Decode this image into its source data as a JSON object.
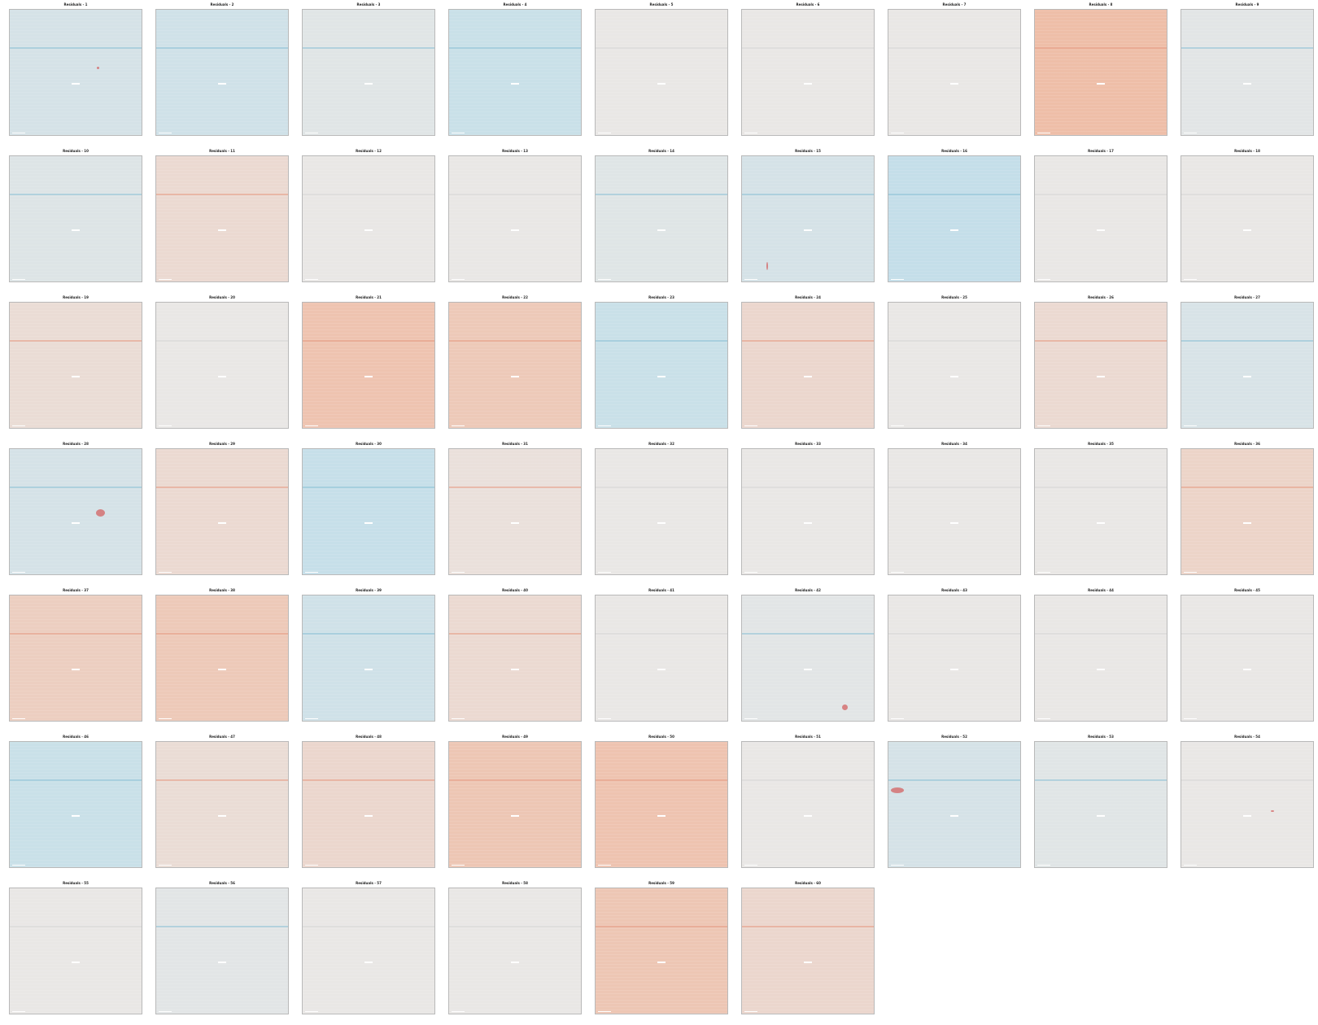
{
  "figure": {
    "panels": [
      {
        "title": "Residuals - 1",
        "tone": "cool",
        "strength": 0.35
      },
      {
        "title": "Residuals - 2",
        "tone": "cool",
        "strength": 0.45
      },
      {
        "title": "Residuals - 3",
        "tone": "cool",
        "strength": 0.15
      },
      {
        "title": "Residuals - 4",
        "tone": "cool",
        "strength": 0.55
      },
      {
        "title": "Residuals - 5",
        "tone": "neutral",
        "strength": 0.0
      },
      {
        "title": "Residuals - 6",
        "tone": "neutral",
        "strength": 0.0
      },
      {
        "title": "Residuals - 7",
        "tone": "neutral",
        "strength": 0.0
      },
      {
        "title": "Residuals - 8",
        "tone": "warm",
        "strength": 0.75
      },
      {
        "title": "Residuals - 9",
        "tone": "cool",
        "strength": 0.12
      },
      {
        "title": "Residuals - 10",
        "tone": "cool",
        "strength": 0.2
      },
      {
        "title": "Residuals - 11",
        "tone": "warm",
        "strength": 0.25
      },
      {
        "title": "Residuals - 12",
        "tone": "neutral",
        "strength": 0.0
      },
      {
        "title": "Residuals - 13",
        "tone": "neutral",
        "strength": 0.0
      },
      {
        "title": "Residuals - 14",
        "tone": "cool",
        "strength": 0.18
      },
      {
        "title": "Residuals - 15",
        "tone": "cool",
        "strength": 0.35
      },
      {
        "title": "Residuals - 16",
        "tone": "cool",
        "strength": 0.65
      },
      {
        "title": "Residuals - 17",
        "tone": "neutral",
        "strength": 0.0
      },
      {
        "title": "Residuals - 18",
        "tone": "neutral",
        "strength": 0.05
      },
      {
        "title": "Residuals - 19",
        "tone": "warm",
        "strength": 0.2
      },
      {
        "title": "Residuals - 20",
        "tone": "neutral",
        "strength": 0.0
      },
      {
        "title": "Residuals - 21",
        "tone": "warm",
        "strength": 0.65
      },
      {
        "title": "Residuals - 22",
        "tone": "warm",
        "strength": 0.55
      },
      {
        "title": "Residuals - 23",
        "tone": "cool",
        "strength": 0.55
      },
      {
        "title": "Residuals - 24",
        "tone": "warm",
        "strength": 0.3
      },
      {
        "title": "Residuals - 25",
        "tone": "neutral",
        "strength": 0.0
      },
      {
        "title": "Residuals - 26",
        "tone": "warm",
        "strength": 0.25
      },
      {
        "title": "Residuals - 27",
        "tone": "cool",
        "strength": 0.3
      },
      {
        "title": "Residuals - 28",
        "tone": "cool",
        "strength": 0.35
      },
      {
        "title": "Residuals - 29",
        "tone": "warm",
        "strength": 0.25
      },
      {
        "title": "Residuals - 30",
        "tone": "cool",
        "strength": 0.6
      },
      {
        "title": "Residuals - 31",
        "tone": "warm",
        "strength": 0.12
      },
      {
        "title": "Residuals - 32",
        "tone": "neutral",
        "strength": 0.0
      },
      {
        "title": "Residuals - 33",
        "tone": "neutral",
        "strength": 0.0
      },
      {
        "title": "Residuals - 34",
        "tone": "neutral",
        "strength": 0.0
      },
      {
        "title": "Residuals - 35",
        "tone": "neutral",
        "strength": 0.0
      },
      {
        "title": "Residuals - 36",
        "tone": "warm",
        "strength": 0.35
      },
      {
        "title": "Residuals - 37",
        "tone": "warm",
        "strength": 0.45
      },
      {
        "title": "Residuals - 38",
        "tone": "warm",
        "strength": 0.55
      },
      {
        "title": "Residuals - 39",
        "tone": "cool",
        "strength": 0.45
      },
      {
        "title": "Residuals - 40",
        "tone": "warm",
        "strength": 0.25
      },
      {
        "title": "Residuals - 41",
        "tone": "neutral",
        "strength": 0.0
      },
      {
        "title": "Residuals - 42",
        "tone": "cool",
        "strength": 0.12
      },
      {
        "title": "Residuals - 43",
        "tone": "neutral",
        "strength": 0.0
      },
      {
        "title": "Residuals - 44",
        "tone": "neutral",
        "strength": 0.0
      },
      {
        "title": "Residuals - 45",
        "tone": "neutral",
        "strength": 0.0
      },
      {
        "title": "Residuals - 46",
        "tone": "cool",
        "strength": 0.55
      },
      {
        "title": "Residuals - 47",
        "tone": "warm",
        "strength": 0.2
      },
      {
        "title": "Residuals - 48",
        "tone": "warm",
        "strength": 0.3
      },
      {
        "title": "Residuals - 49",
        "tone": "warm",
        "strength": 0.6
      },
      {
        "title": "Residuals - 50",
        "tone": "warm",
        "strength": 0.65
      },
      {
        "title": "Residuals - 51",
        "tone": "neutral",
        "strength": 0.0
      },
      {
        "title": "Residuals - 52",
        "tone": "cool",
        "strength": 0.35
      },
      {
        "title": "Residuals - 53",
        "tone": "cool",
        "strength": 0.15
      },
      {
        "title": "Residuals - 54",
        "tone": "neutral",
        "strength": 0.0
      },
      {
        "title": "Residuals - 55",
        "tone": "neutral",
        "strength": 0.0
      },
      {
        "title": "Residuals - 56",
        "tone": "cool",
        "strength": 0.12
      },
      {
        "title": "Residuals - 57",
        "tone": "neutral",
        "strength": 0.0
      },
      {
        "title": "Residuals - 58",
        "tone": "neutral",
        "strength": 0.0
      },
      {
        "title": "Residuals - 59",
        "tone": "warm",
        "strength": 0.6
      },
      {
        "title": "Residuals - 60",
        "tone": "warm",
        "strength": 0.3
      }
    ],
    "colors": {
      "cool": "#b9dcea",
      "neutral": "#e9e7e5",
      "warm": "#efb9a1",
      "cool_line": "#8dc1d6",
      "warm_line": "#e59b84",
      "border": "#b9b9b9",
      "title": "#222222",
      "spot": "#d36161"
    }
  }
}
